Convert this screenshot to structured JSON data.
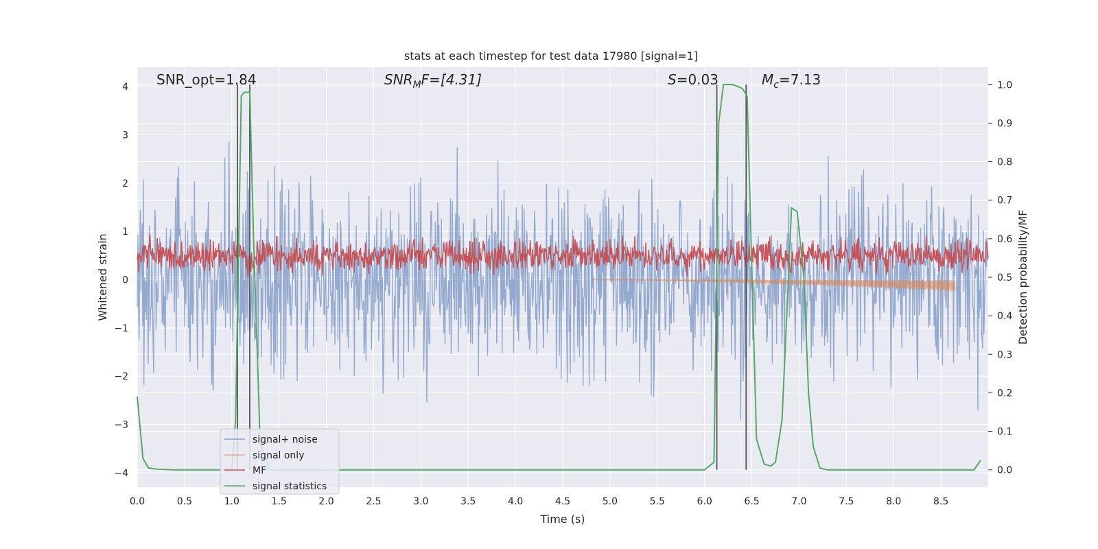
{
  "chart_data": {
    "type": "line",
    "title": "stats at each timestep for test data 17980 [signal=1]",
    "xlabel": "Time (s)",
    "ylabel": "Whitened strain",
    "ylabel_right": "Detection probability/MF",
    "xlim": [
      0.0,
      9.0
    ],
    "ylim": [
      -4.3,
      4.4
    ],
    "ylim_right": [
      -0.045,
      1.045
    ],
    "x_ticks": [
      "0.0",
      "0.5",
      "1.0",
      "1.5",
      "2.0",
      "2.5",
      "3.0",
      "3.5",
      "4.0",
      "4.5",
      "5.0",
      "5.5",
      "6.0",
      "6.5",
      "7.0",
      "7.5",
      "8.0",
      "8.5"
    ],
    "y_ticks": [
      "4",
      "3",
      "2",
      "1",
      "0",
      "−1",
      "−2",
      "−3",
      "−4"
    ],
    "y_right_ticks": [
      "1.0",
      "0.9",
      "0.8",
      "0.7",
      "0.6",
      "0.5",
      "0.4",
      "0.3",
      "0.2",
      "0.1",
      "0.0"
    ],
    "grid": true,
    "legend_placement": "lower-left",
    "colors": {
      "signal_noise": "#4c72b0",
      "signal_only": "#dd8452",
      "mf": "#c44e52",
      "stat": "#55a868",
      "background": "#eaeaf2",
      "vline": "#555555"
    },
    "annotations": {
      "snr_opt": "SNR_opt=1.84",
      "snr_mf_main": "SNR",
      "snr_mf_sub": "M",
      "snr_mf_rest": "F=[4.31]",
      "s_italic": "S",
      "s_rest": "=0.03",
      "mc_main": "M",
      "mc_sub": "c",
      "mc_rest": "=7.13"
    },
    "vertical_lines_x": [
      1.06,
      1.19,
      6.13,
      6.44
    ],
    "series": [
      {
        "name": "signal+ noise",
        "kind": "noise",
        "amplitude_range": [
          -3.6,
          4.0
        ]
      },
      {
        "name": "signal only",
        "kind": "chirp",
        "x_start": 4.8,
        "x_end": 8.65,
        "y_min_end": -0.25
      },
      {
        "name": "MF",
        "kind": "mf_right_axis",
        "range": [
          0.5,
          0.65
        ]
      },
      {
        "name": "signal statistics",
        "kind": "step_right_axis",
        "x": [
          0.0,
          0.06,
          0.12,
          0.2,
          0.4,
          1.0,
          1.04,
          1.1,
          1.13,
          1.19,
          1.23,
          1.3,
          1.4,
          2.0,
          5.0,
          6.0,
          6.1,
          6.15,
          6.2,
          6.3,
          6.4,
          6.45,
          6.55,
          6.63,
          6.7,
          6.75,
          6.82,
          6.92,
          6.98,
          7.05,
          7.1,
          7.15,
          7.22,
          7.3,
          8.0,
          8.85,
          8.92
        ],
        "y": [
          0.19,
          0.03,
          0.005,
          0.002,
          0.0,
          0.0,
          0.13,
          0.97,
          0.98,
          0.98,
          0.6,
          0.07,
          0.0,
          0.0,
          0.0,
          0.0,
          0.02,
          0.9,
          1.0,
          1.0,
          0.99,
          0.97,
          0.08,
          0.015,
          0.01,
          0.02,
          0.13,
          0.68,
          0.67,
          0.5,
          0.2,
          0.06,
          0.005,
          0.0,
          0.0,
          0.0,
          0.025
        ]
      }
    ]
  }
}
